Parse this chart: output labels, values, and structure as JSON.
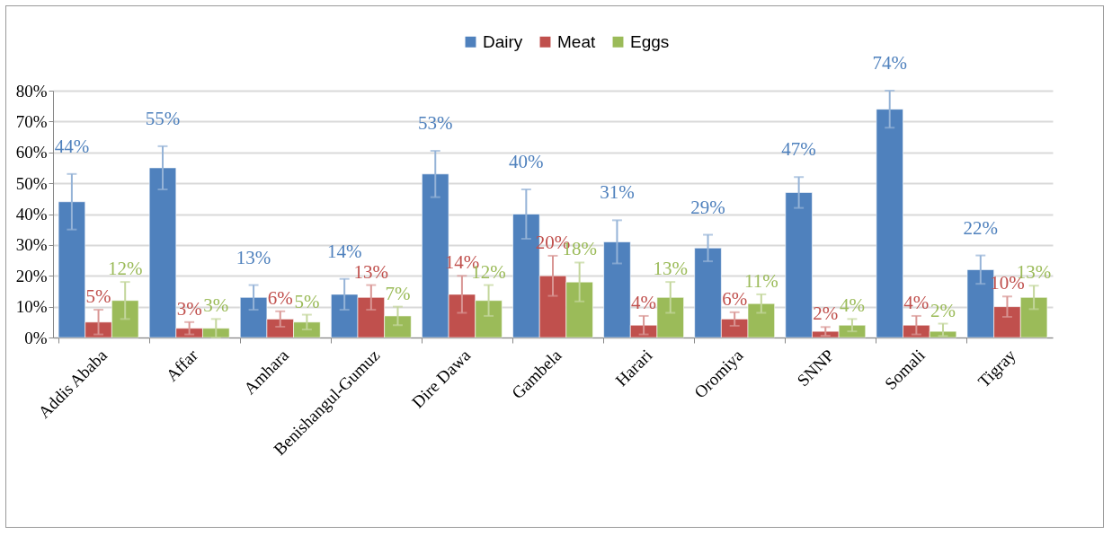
{
  "chart_data": {
    "type": "bar",
    "categories": [
      "Addis Ababa",
      "Affar",
      "Amhara",
      "Benishangul-Gumuz",
      "Dire Dawa",
      "Gambela",
      "Harari",
      "Oromiya",
      "SNNP",
      "Somali",
      "Tigray"
    ],
    "series": [
      {
        "name": "Dairy",
        "color": "#4f81bd",
        "values": [
          44,
          55,
          13,
          14,
          53,
          40,
          31,
          29,
          47,
          74,
          22
        ],
        "errors": [
          9,
          7,
          4,
          5,
          7.5,
          8,
          7,
          4.3,
          5,
          6,
          4.6
        ],
        "value_labels": [
          "44%",
          "55%",
          "13%",
          "14%",
          "53%",
          "40%",
          "31%",
          "29%",
          "47%",
          "74%",
          "22%"
        ]
      },
      {
        "name": "Meat",
        "color": "#c0504d",
        "values": [
          5,
          3,
          6,
          13,
          14,
          20,
          4,
          6,
          2,
          4,
          10
        ],
        "errors": [
          4,
          2,
          2.5,
          4,
          6,
          6.5,
          3,
          2.2,
          1.4,
          3,
          3.3
        ],
        "value_labels": [
          "5%",
          "3%",
          "6%",
          "13%",
          "14%",
          "20%",
          "4%",
          "6%",
          "2%",
          "4%",
          "10%"
        ]
      },
      {
        "name": "Eggs",
        "color": "#9bbb59",
        "values": [
          12,
          3,
          5,
          7,
          12,
          18,
          13,
          11,
          4,
          2,
          13
        ],
        "errors": [
          6,
          3,
          2.4,
          3,
          5,
          6.3,
          5,
          3,
          2,
          [
            0.5,
            4.5
          ],
          3.8
        ],
        "value_labels": [
          "12%",
          "3%",
          "5%",
          "7%",
          "12%",
          "18%",
          "13%",
          "11%",
          "4%",
          "2%",
          "13%"
        ]
      }
    ],
    "ylim": [
      0,
      80
    ],
    "yticks": [
      {
        "value": 0,
        "label": "0%"
      },
      {
        "value": 10,
        "label": "10%"
      },
      {
        "value": 20,
        "label": "20%"
      },
      {
        "value": 30,
        "label": "30%"
      },
      {
        "value": 40,
        "label": "40%"
      },
      {
        "value": 50,
        "label": "50%"
      },
      {
        "value": 60,
        "label": "60%"
      },
      {
        "value": 70,
        "label": "70%"
      },
      {
        "value": 80,
        "label": "80%"
      }
    ],
    "grid": "y",
    "legend": "top"
  }
}
